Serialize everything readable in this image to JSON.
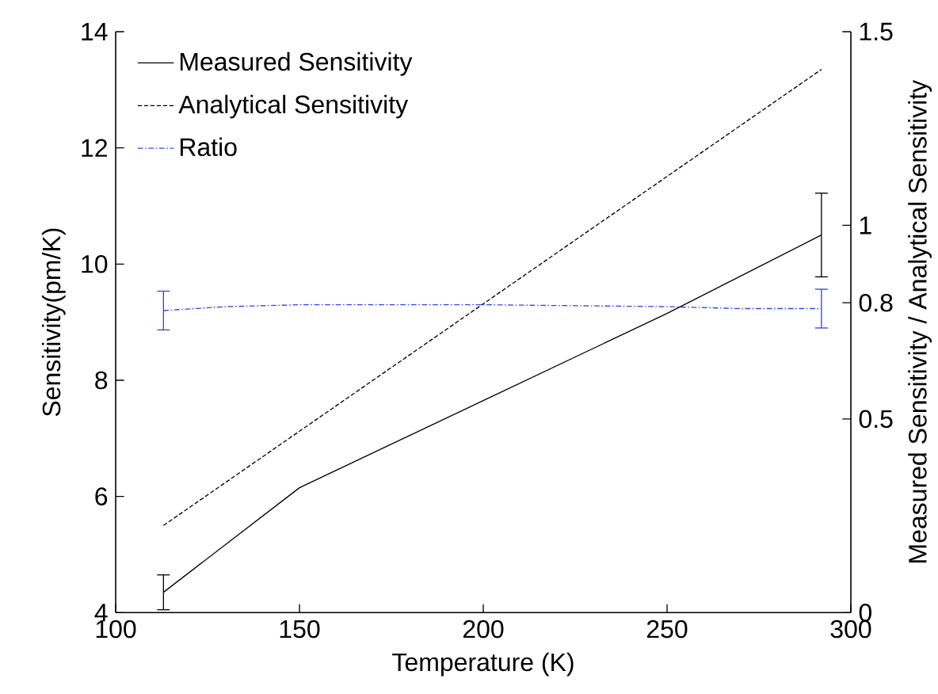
{
  "chart_data": {
    "type": "line",
    "xlabel": "Temperature (K)",
    "ylabel": "Sensitivity(pm/K)",
    "y2label": "Measured Sensitivity / Analytical Sensitivity",
    "xlim": [
      100,
      300
    ],
    "xticks": [
      100,
      150,
      200,
      250,
      300
    ],
    "ylim": [
      4,
      14
    ],
    "yticks": [
      4,
      6,
      8,
      10,
      12,
      14
    ],
    "y2lim": [
      0,
      1.5
    ],
    "y2ticks": [
      0,
      0.5,
      0.8,
      1,
      1.5
    ],
    "legend": "top left",
    "grid": false,
    "marker": "none",
    "series": [
      {
        "name": "Measured Sensitivity",
        "color": "#000000",
        "line_style": "solid",
        "x": [
          113,
          150,
          200,
          250,
          292
        ],
        "values": [
          4.35,
          6.15,
          7.65,
          9.15,
          10.5
        ],
        "errors": [
          0.3,
          null,
          null,
          null,
          0.72
        ]
      },
      {
        "name": "Analytical Sensitivity",
        "color": "#000000",
        "line_style": "dashed",
        "x": [
          113,
          292
        ],
        "values": [
          5.5,
          13.35
        ]
      },
      {
        "name": "Ratio",
        "color": "#3344ee",
        "line_style": "dotted",
        "axis": "y2",
        "x": [
          113,
          130,
          150,
          200,
          250,
          270,
          292
        ],
        "values": [
          0.78,
          0.79,
          0.795,
          0.795,
          0.79,
          0.785,
          0.785
        ],
        "errors": [
          0.05,
          null,
          null,
          null,
          null,
          null,
          0.05
        ]
      }
    ]
  }
}
